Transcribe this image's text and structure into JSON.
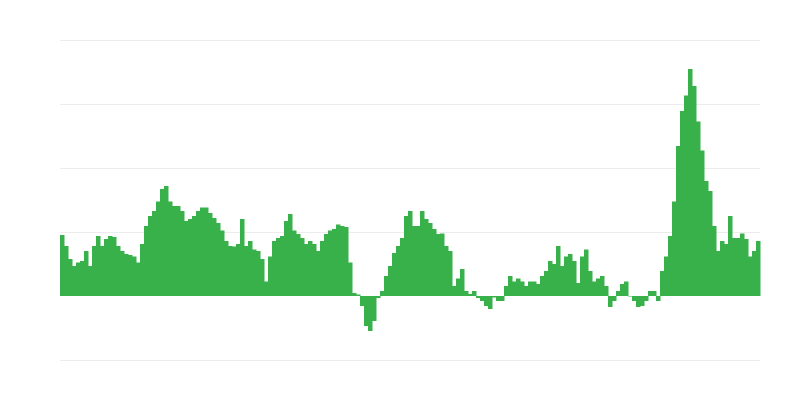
{
  "chart_data": {
    "type": "bar",
    "title": "",
    "xlabel": "",
    "ylabel": "",
    "ylim": [
      -1,
      4
    ],
    "grid": true,
    "gridlines_y": [
      -1,
      1,
      2,
      3,
      4
    ],
    "bar_color": "#38b14b",
    "gridline_color": "#ececec",
    "values": [
      0.95,
      0.78,
      0.58,
      0.47,
      0.52,
      0.55,
      0.7,
      0.47,
      0.78,
      0.94,
      0.78,
      0.89,
      0.94,
      0.92,
      0.78,
      0.7,
      0.66,
      0.64,
      0.62,
      0.52,
      0.81,
      1.09,
      1.25,
      1.33,
      1.48,
      1.67,
      1.72,
      1.48,
      1.41,
      1.41,
      1.33,
      1.17,
      1.2,
      1.25,
      1.33,
      1.38,
      1.38,
      1.3,
      1.22,
      1.14,
      1.02,
      0.86,
      0.78,
      0.77,
      0.81,
      1.2,
      0.78,
      0.86,
      0.73,
      0.7,
      0.58,
      0.23,
      0.62,
      0.86,
      0.91,
      0.94,
      1.17,
      1.28,
      1.02,
      0.97,
      0.91,
      0.81,
      0.86,
      0.81,
      0.7,
      0.86,
      0.97,
      1.02,
      1.05,
      1.12,
      1.09,
      1.08,
      0.52,
      0.05,
      0.02,
      -0.16,
      -0.47,
      -0.55,
      -0.39,
      -0.03,
      0.08,
      0.31,
      0.47,
      0.67,
      0.78,
      0.91,
      1.25,
      1.33,
      1.09,
      1.09,
      1.33,
      1.2,
      1.14,
      1.05,
      0.97,
      0.98,
      0.78,
      0.7,
      0.16,
      0.27,
      0.42,
      0.08,
      0.03,
      0.08,
      -0.03,
      -0.08,
      -0.16,
      -0.2,
      -0.02,
      -0.08,
      -0.08,
      0.16,
      0.31,
      0.23,
      0.27,
      0.23,
      0.16,
      0.23,
      0.23,
      0.19,
      0.31,
      0.39,
      0.55,
      0.5,
      0.78,
      0.47,
      0.62,
      0.66,
      0.55,
      0.2,
      0.62,
      0.73,
      0.39,
      0.23,
      0.27,
      0.31,
      0.16,
      -0.17,
      -0.08,
      0.08,
      0.19,
      0.23,
      0,
      -0.08,
      -0.17,
      -0.16,
      -0.08,
      0.08,
      0.08,
      -0.08,
      0.39,
      0.62,
      0.94,
      1.48,
      2.34,
      2.89,
      3.13,
      3.55,
      3.28,
      2.73,
      2.27,
      1.8,
      1.64,
      1.09,
      0.7,
      0.86,
      0.81,
      1.25,
      0.91,
      0.91,
      0.98,
      0.89,
      0.62,
      0.7,
      0.86
    ]
  }
}
